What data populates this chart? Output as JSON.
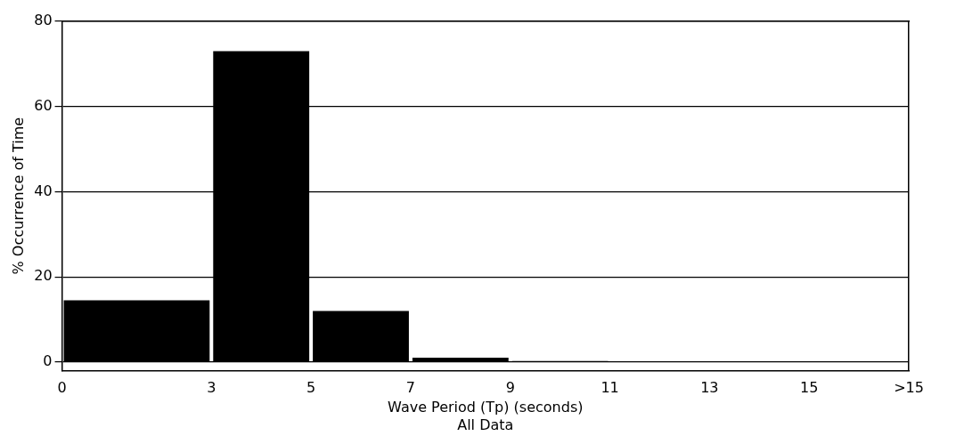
{
  "chart_data": {
    "type": "histogram",
    "xlabel": "Wave Period (Tp) (seconds)",
    "ylabel": "% Occurrence of Time",
    "annotations": [
      "All Data"
    ],
    "bins": [
      0,
      3,
      5,
      7,
      9,
      11,
      13
    ],
    "values": [
      14.5,
      73,
      12,
      1,
      0.2,
      0.1
    ],
    "color": "#000000",
    "xticks": [
      0,
      3,
      5,
      7,
      9,
      11,
      13,
      15,
      {
        "value": 17,
        "label": ">15"
      }
    ],
    "xlim": [
      0,
      17
    ],
    "ylim": [
      -2,
      80
    ],
    "yticks": [
      0,
      20,
      40,
      60,
      80
    ],
    "grid": "y",
    "legend": false
  }
}
